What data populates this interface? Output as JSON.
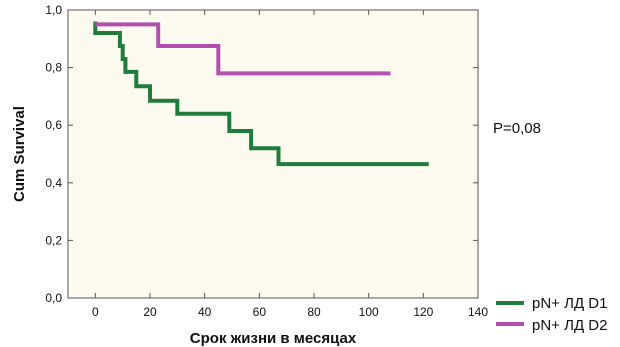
{
  "chart_data": {
    "type": "line",
    "step": true,
    "xlabel": "Срок жизни в месяцах",
    "ylabel": "Cum Survival",
    "xlim": [
      -10,
      140
    ],
    "ylim": [
      0,
      1.0
    ],
    "x_ticks": [
      0,
      20,
      40,
      60,
      80,
      100,
      120,
      140
    ],
    "y_ticks": [
      0.0,
      0.2,
      0.4,
      0.6,
      0.8,
      1.0
    ],
    "x_tick_labels": [
      "0",
      "20",
      "40",
      "60",
      "80",
      "100",
      "120",
      "140"
    ],
    "y_tick_labels": [
      "0,0",
      "0,2",
      "0,4",
      "0,6",
      "0,8",
      "1,0"
    ],
    "grid": false,
    "plot_background": "#fdfbf0",
    "annotation": "P=0,08",
    "legend_position": "bottom-right",
    "series": [
      {
        "name": "pN+ ЛД D1",
        "color": "#1e7d3a",
        "points": [
          [
            0,
            0.96
          ],
          [
            0,
            0.92
          ],
          [
            9,
            0.92
          ],
          [
            9,
            0.875
          ],
          [
            10,
            0.875
          ],
          [
            10,
            0.83
          ],
          [
            11,
            0.83
          ],
          [
            11,
            0.785
          ],
          [
            15,
            0.785
          ],
          [
            15,
            0.735
          ],
          [
            20,
            0.735
          ],
          [
            20,
            0.685
          ],
          [
            30,
            0.685
          ],
          [
            30,
            0.64
          ],
          [
            49,
            0.64
          ],
          [
            49,
            0.58
          ],
          [
            57,
            0.58
          ],
          [
            57,
            0.52
          ],
          [
            67,
            0.52
          ],
          [
            67,
            0.465
          ],
          [
            122,
            0.465
          ]
        ]
      },
      {
        "name": "pN+ ЛД D2",
        "color": "#b44fb1",
        "points": [
          [
            0,
            0.95
          ],
          [
            23,
            0.95
          ],
          [
            23,
            0.875
          ],
          [
            45,
            0.875
          ],
          [
            45,
            0.78
          ],
          [
            108,
            0.78
          ]
        ]
      }
    ]
  }
}
